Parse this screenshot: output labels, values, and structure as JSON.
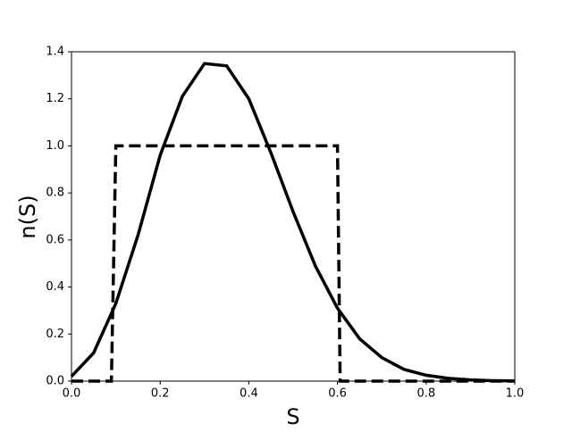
{
  "chart_data": {
    "type": "line",
    "xlabel": "S",
    "ylabel": "n(S)",
    "xlim": [
      0,
      1
    ],
    "ylim": [
      0,
      1.4
    ],
    "xticks": [
      {
        "value": 0,
        "label": "0.0"
      },
      {
        "value": 0.2,
        "label": "0.2"
      },
      {
        "value": 0.4,
        "label": "0.4"
      },
      {
        "value": 0.6,
        "label": "0.6"
      },
      {
        "value": 0.8,
        "label": "0.8"
      },
      {
        "value": 1,
        "label": "1.0"
      }
    ],
    "yticks": [
      {
        "value": 0,
        "label": "0.0"
      },
      0.2,
      0.4,
      0.6,
      0.8,
      {
        "value": 1,
        "label": "1.0"
      },
      1.2,
      1.4
    ],
    "series": [
      {
        "color": "#000000",
        "style": "solid",
        "x": [
          0,
          0.05,
          0.1,
          0.15,
          0.2,
          0.25,
          0.3,
          0.35,
          0.4,
          0.45,
          0.5,
          0.55,
          0.6,
          0.65,
          0.7,
          0.75,
          0.8,
          0.85,
          0.9,
          0.95,
          1
        ],
        "values": [
          0.02,
          0.12,
          0.33,
          0.62,
          0.96,
          1.21,
          1.35,
          1.34,
          1.2,
          0.97,
          0.72,
          0.49,
          0.31,
          0.18,
          0.1,
          0.05,
          0.025,
          0.012,
          0.005,
          0.002,
          0.001
        ]
      },
      {
        "color": "#000000",
        "style": "dashed",
        "x": [
          0,
          0.09,
          0.1,
          0.6,
          0.606,
          1
        ],
        "values": [
          0,
          0,
          1,
          1,
          0,
          0
        ]
      }
    ]
  }
}
